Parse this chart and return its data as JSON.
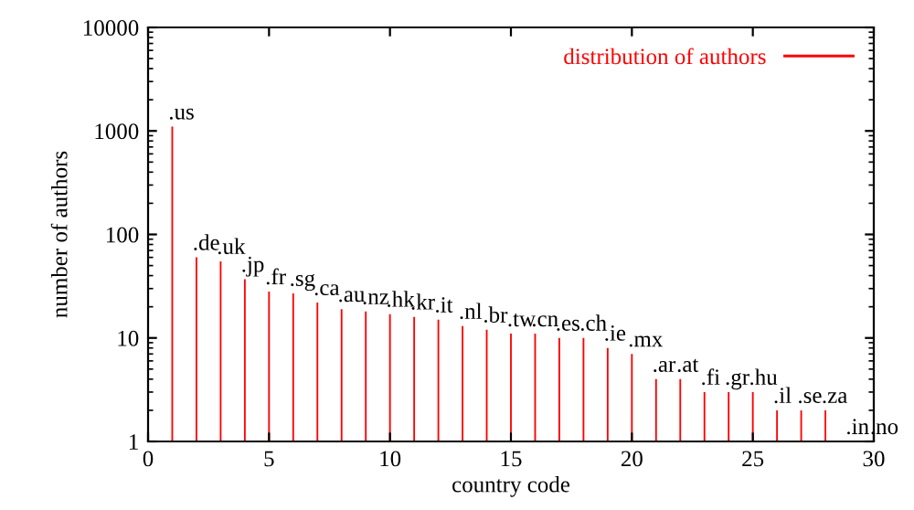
{
  "chart_data": {
    "type": "bar",
    "xlabel": "country code",
    "ylabel": "number of authors",
    "x": [
      1,
      2,
      3,
      4,
      5,
      6,
      7,
      8,
      9,
      10,
      11,
      12,
      13,
      14,
      15,
      16,
      17,
      18,
      19,
      20,
      21,
      22,
      23,
      24,
      25,
      26,
      27,
      28,
      29,
      30
    ],
    "series": [
      {
        "name": "distribution of authors",
        "color": "#ff0000",
        "values": [
          1100,
          60,
          55,
          37,
          28,
          27,
          22,
          19,
          18,
          17,
          16,
          15,
          13,
          12,
          11,
          11,
          10,
          10,
          8,
          7,
          4,
          4,
          3,
          3,
          3,
          2,
          2,
          2,
          1,
          1
        ],
        "value_labels": [
          ".us",
          ".de",
          ".uk",
          ".jp",
          ".fr",
          ".sg",
          ".ca",
          ".au",
          ".nz",
          ".hk",
          ".kr",
          ".it",
          ".nl",
          ".br",
          ".tw",
          ".cn",
          ".es",
          ".ch",
          ".ie",
          ".mx",
          ".ar",
          ".at",
          ".fi",
          ".gr",
          ".hu",
          ".il",
          ".se",
          ".za",
          ".in",
          ".no"
        ]
      }
    ],
    "xlim": [
      0,
      30
    ],
    "xticks": [
      0,
      5,
      10,
      15,
      20,
      25,
      30
    ],
    "ylim": [
      1,
      10000
    ],
    "yticks": [
      1,
      10,
      100,
      1000,
      10000
    ],
    "log": "y",
    "grid": false,
    "legend": "top right"
  }
}
